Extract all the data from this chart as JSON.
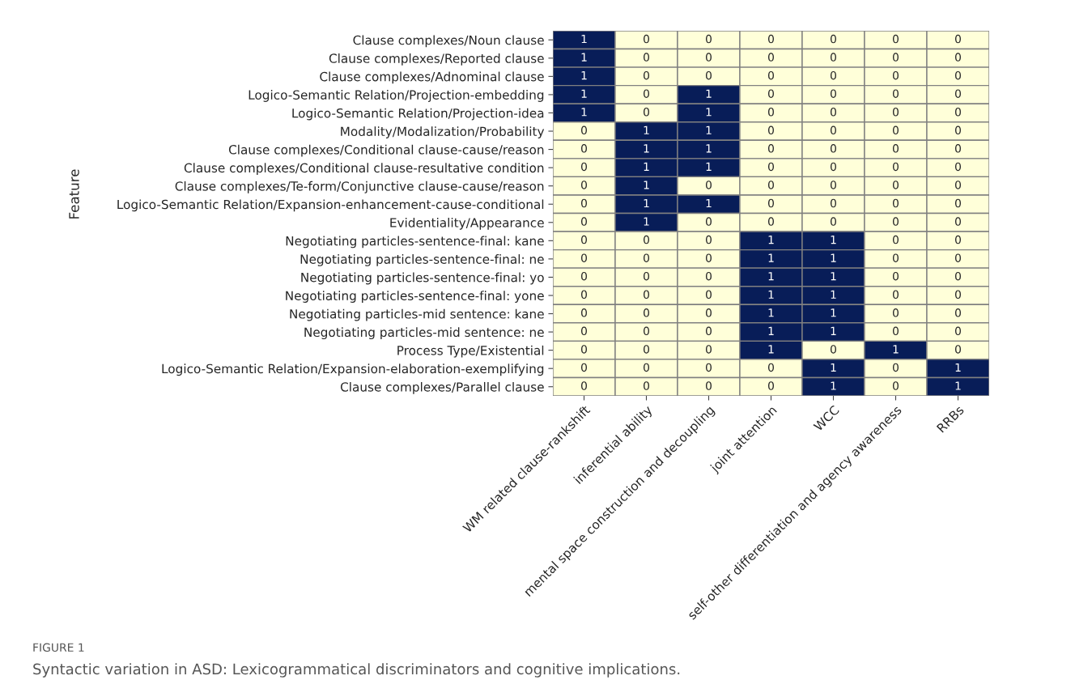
{
  "chart_data": {
    "type": "heatmap",
    "ylabel": "Feature",
    "categories": [
      "WM related clause-rankshift",
      "inferential ability",
      "mental space construction and decoupling",
      "joint attention",
      "WCC",
      "self-other differentiation and agency awareness",
      "RRBs"
    ],
    "y_categories": [
      "Clause complexes/Noun clause",
      "Clause complexes/Reported clause",
      "Clause complexes/Adnominal clause",
      "Logico-Semantic Relation/Projection-embedding",
      "Logico-Semantic Relation/Projection-idea",
      "Modality/Modalization/Probability",
      "Clause complexes/Conditional clause-cause/reason",
      "Clause complexes/Conditional clause-resultative condition",
      "Clause complexes/Te-form/Conjunctive clause-cause/reason",
      "Logico-Semantic Relation/Expansion-enhancement-cause-conditional",
      "Evidentiality/Appearance",
      "Negotiating particles-sentence-final: kane",
      "Negotiating particles-sentence-final: ne",
      "Negotiating particles-sentence-final: yo",
      "Negotiating particles-sentence-final: yone",
      "Negotiating particles-mid sentence: kane",
      "Negotiating particles-mid sentence: ne",
      "Process Type/Existential",
      "Logico-Semantic Relation/Expansion-elaboration-exemplifying",
      "Clause complexes/Parallel clause"
    ],
    "cells": [
      [
        1,
        0,
        0,
        0,
        0,
        0,
        0
      ],
      [
        1,
        0,
        0,
        0,
        0,
        0,
        0
      ],
      [
        1,
        0,
        0,
        0,
        0,
        0,
        0
      ],
      [
        1,
        0,
        1,
        0,
        0,
        0,
        0
      ],
      [
        1,
        0,
        1,
        0,
        0,
        0,
        0
      ],
      [
        0,
        1,
        1,
        0,
        0,
        0,
        0
      ],
      [
        0,
        1,
        1,
        0,
        0,
        0,
        0
      ],
      [
        0,
        1,
        1,
        0,
        0,
        0,
        0
      ],
      [
        0,
        1,
        0,
        0,
        0,
        0,
        0
      ],
      [
        0,
        1,
        1,
        0,
        0,
        0,
        0
      ],
      [
        0,
        1,
        0,
        0,
        0,
        0,
        0
      ],
      [
        0,
        0,
        0,
        1,
        1,
        0,
        0
      ],
      [
        0,
        0,
        0,
        1,
        1,
        0,
        0
      ],
      [
        0,
        0,
        0,
        1,
        1,
        0,
        0
      ],
      [
        0,
        0,
        0,
        1,
        1,
        0,
        0
      ],
      [
        0,
        0,
        0,
        1,
        1,
        0,
        0
      ],
      [
        0,
        0,
        0,
        1,
        1,
        0,
        0
      ],
      [
        0,
        0,
        0,
        1,
        0,
        1,
        0
      ],
      [
        0,
        0,
        0,
        0,
        1,
        0,
        1
      ],
      [
        0,
        0,
        0,
        0,
        1,
        0,
        1
      ]
    ],
    "colors": [
      "#ffffd9",
      "#081d58"
    ],
    "data_labels": true,
    "annotations": [
      "FIGURE 1",
      "Syntactic variation in ASD: Lexicogrammatical discriminators and cognitive implications."
    ]
  }
}
